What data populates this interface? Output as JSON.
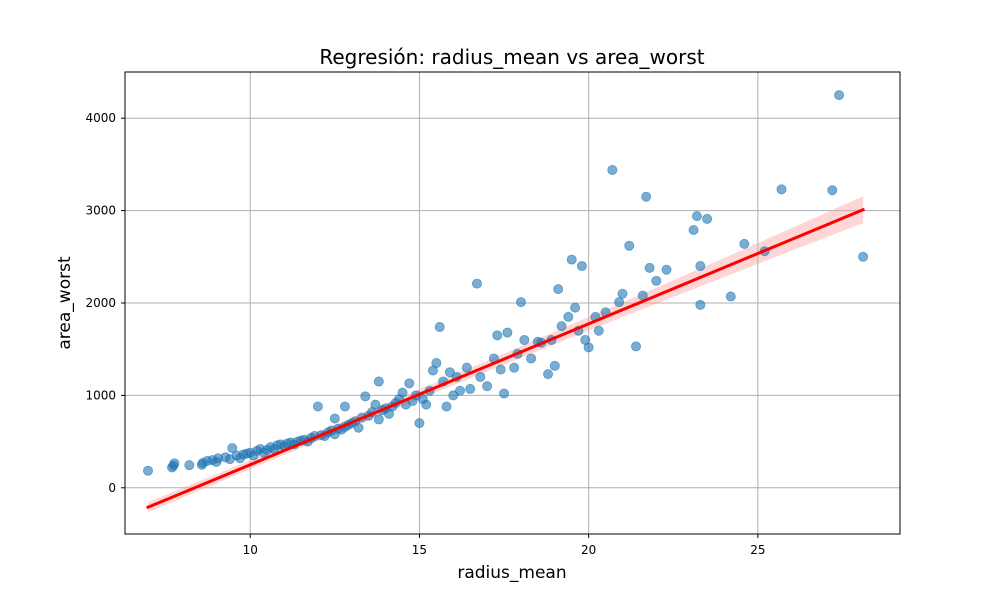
{
  "chart_data": {
    "type": "scatter",
    "title": "Regresión: radius_mean vs area_worst",
    "xlabel": "radius_mean",
    "ylabel": "area_worst",
    "xlim": [
      6.3,
      29.2
    ],
    "ylim": [
      -500,
      4500
    ],
    "xticks": [
      10,
      15,
      20,
      25
    ],
    "yticks": [
      0,
      1000,
      2000,
      3000,
      4000
    ],
    "grid": true,
    "colors": {
      "points": "#1f77b4",
      "line": "#ff0000",
      "band": "#ff9999"
    },
    "regression": {
      "x": [
        6.98,
        28.11
      ],
      "y": [
        -210,
        3010
      ],
      "ci_start": 55,
      "ci_end": 145
    },
    "series": [
      {
        "points": [
          [
            6.98,
            185
          ],
          [
            7.69,
            220
          ],
          [
            7.73,
            240
          ],
          [
            7.76,
            265
          ],
          [
            8.2,
            245
          ],
          [
            8.57,
            250
          ],
          [
            8.6,
            270
          ],
          [
            8.73,
            290
          ],
          [
            8.88,
            300
          ],
          [
            9.0,
            280
          ],
          [
            9.05,
            320
          ],
          [
            9.27,
            330
          ],
          [
            9.4,
            310
          ],
          [
            9.47,
            430
          ],
          [
            9.6,
            350
          ],
          [
            9.7,
            320
          ],
          [
            9.8,
            360
          ],
          [
            9.9,
            370
          ],
          [
            10.0,
            380
          ],
          [
            10.1,
            350
          ],
          [
            10.2,
            400
          ],
          [
            10.3,
            420
          ],
          [
            10.4,
            380
          ],
          [
            10.5,
            410
          ],
          [
            10.6,
            440
          ],
          [
            10.7,
            420
          ],
          [
            10.8,
            460
          ],
          [
            10.9,
            470
          ],
          [
            11.0,
            450
          ],
          [
            11.1,
            480
          ],
          [
            11.2,
            490
          ],
          [
            11.3,
            470
          ],
          [
            11.4,
            500
          ],
          [
            11.5,
            510
          ],
          [
            11.6,
            520
          ],
          [
            11.7,
            500
          ],
          [
            11.8,
            540
          ],
          [
            11.9,
            560
          ],
          [
            12.0,
            880
          ],
          [
            12.1,
            570
          ],
          [
            12.2,
            560
          ],
          [
            12.3,
            600
          ],
          [
            12.4,
            620
          ],
          [
            12.5,
            750
          ],
          [
            12.5,
            580
          ],
          [
            12.6,
            640
          ],
          [
            12.7,
            630
          ],
          [
            12.8,
            880
          ],
          [
            12.8,
            660
          ],
          [
            12.9,
            680
          ],
          [
            13.0,
            700
          ],
          [
            13.1,
            720
          ],
          [
            13.2,
            650
          ],
          [
            13.3,
            760
          ],
          [
            13.4,
            990
          ],
          [
            13.5,
            780
          ],
          [
            13.6,
            820
          ],
          [
            13.7,
            900
          ],
          [
            13.8,
            1150
          ],
          [
            13.8,
            740
          ],
          [
            13.9,
            840
          ],
          [
            14.0,
            860
          ],
          [
            14.1,
            800
          ],
          [
            14.2,
            880
          ],
          [
            14.3,
            920
          ],
          [
            14.4,
            960
          ],
          [
            14.5,
            1030
          ],
          [
            14.6,
            900
          ],
          [
            14.7,
            1130
          ],
          [
            14.8,
            940
          ],
          [
            14.9,
            1000
          ],
          [
            15.0,
            700
          ],
          [
            15.1,
            960
          ],
          [
            15.2,
            900
          ],
          [
            15.3,
            1050
          ],
          [
            15.4,
            1270
          ],
          [
            15.5,
            1350
          ],
          [
            15.6,
            1740
          ],
          [
            15.7,
            1150
          ],
          [
            15.8,
            880
          ],
          [
            15.9,
            1250
          ],
          [
            16.0,
            1000
          ],
          [
            16.1,
            1200
          ],
          [
            16.2,
            1050
          ],
          [
            16.4,
            1300
          ],
          [
            16.5,
            1070
          ],
          [
            16.7,
            2210
          ],
          [
            16.8,
            1200
          ],
          [
            17.0,
            1100
          ],
          [
            17.2,
            1400
          ],
          [
            17.3,
            1650
          ],
          [
            17.4,
            1280
          ],
          [
            17.5,
            1020
          ],
          [
            17.6,
            1680
          ],
          [
            17.8,
            1300
          ],
          [
            17.9,
            1450
          ],
          [
            18.0,
            2010
          ],
          [
            18.1,
            1600
          ],
          [
            18.3,
            1400
          ],
          [
            18.5,
            1580
          ],
          [
            18.6,
            1570
          ],
          [
            18.8,
            1230
          ],
          [
            18.9,
            1600
          ],
          [
            19.0,
            1320
          ],
          [
            19.1,
            2150
          ],
          [
            19.2,
            1750
          ],
          [
            19.4,
            1850
          ],
          [
            19.5,
            2470
          ],
          [
            19.6,
            1950
          ],
          [
            19.7,
            1700
          ],
          [
            19.8,
            2400
          ],
          [
            19.9,
            1600
          ],
          [
            20.0,
            1520
          ],
          [
            20.2,
            1850
          ],
          [
            20.3,
            1700
          ],
          [
            20.5,
            1900
          ],
          [
            20.7,
            3440
          ],
          [
            20.9,
            2010
          ],
          [
            21.0,
            2100
          ],
          [
            21.2,
            2620
          ],
          [
            21.4,
            1530
          ],
          [
            21.6,
            2080
          ],
          [
            21.7,
            3150
          ],
          [
            21.8,
            2380
          ],
          [
            22.0,
            2240
          ],
          [
            22.3,
            2360
          ],
          [
            23.1,
            2790
          ],
          [
            23.2,
            2940
          ],
          [
            23.3,
            2400
          ],
          [
            23.3,
            1980
          ],
          [
            23.5,
            2910
          ],
          [
            24.2,
            2070
          ],
          [
            24.6,
            2640
          ],
          [
            25.2,
            2560
          ],
          [
            25.7,
            3230
          ],
          [
            27.2,
            3220
          ],
          [
            27.4,
            4250
          ],
          [
            28.11,
            2500
          ]
        ]
      }
    ]
  }
}
